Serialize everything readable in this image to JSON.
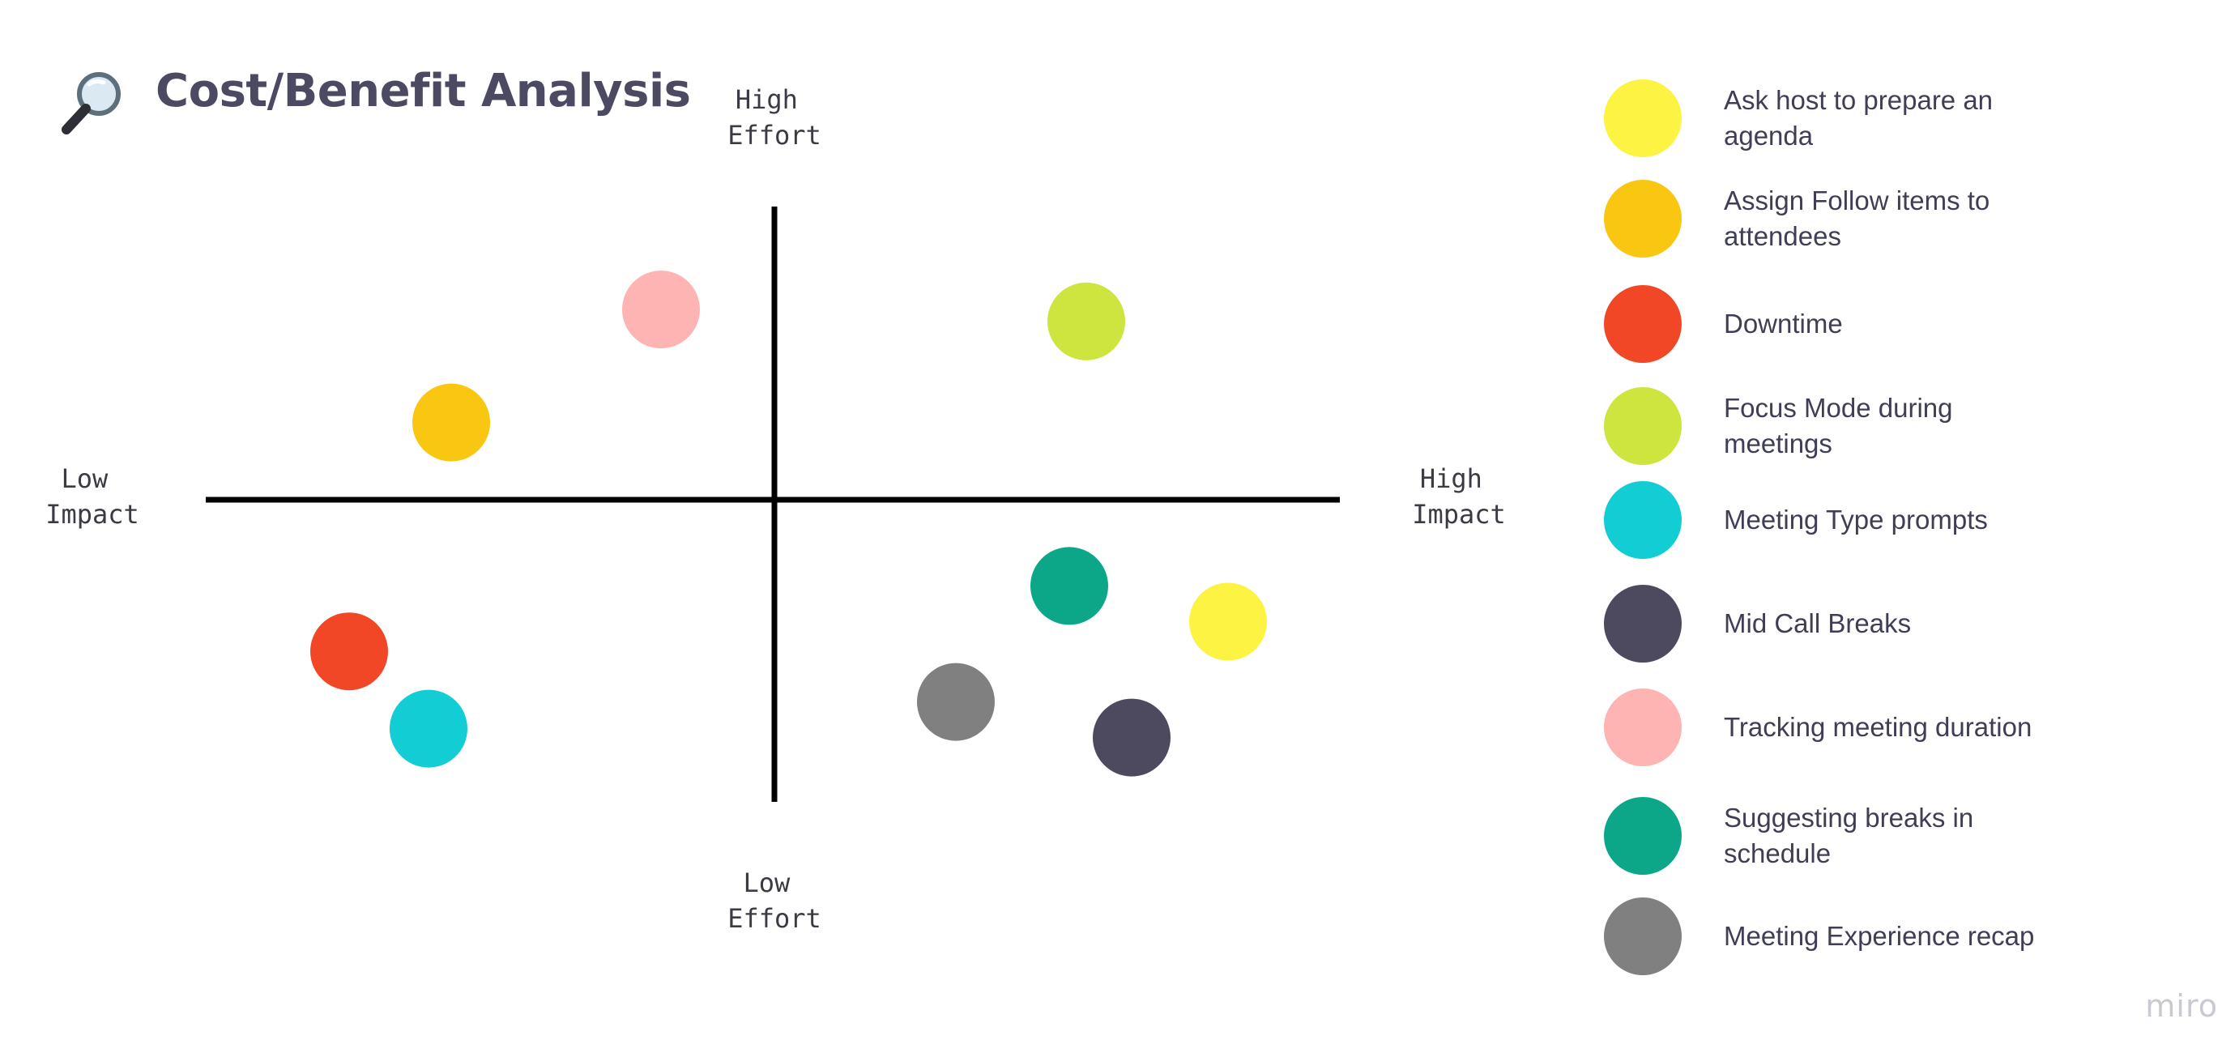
{
  "title": "Cost/Benefit Analysis",
  "title_icon": "magnifying-glass-icon",
  "watermark": "miro",
  "colors": {
    "text": "#4b4a62",
    "axis": "#000000"
  },
  "chart_data": {
    "type": "scatter",
    "title": "Cost/Benefit Analysis",
    "x_axis": {
      "low_label": [
        "Low",
        "Impact"
      ],
      "high_label": [
        "High",
        "Impact"
      ],
      "range": [
        -1,
        1
      ]
    },
    "y_axis": {
      "low_label": [
        "Low",
        "Effort"
      ],
      "high_label": [
        "High",
        "Effort"
      ],
      "range": [
        -1,
        1
      ]
    },
    "grid": false,
    "legend_position": "right",
    "points": [
      {
        "name": "Ask host to prepare an agenda",
        "color": "#fcf342",
        "x": 0.8,
        "y": -0.41
      },
      {
        "name": "Assign Follow items to attendees",
        "color": "#f9c612",
        "x": -0.57,
        "y": 0.26
      },
      {
        "name": "Downtime",
        "color": "#f24726",
        "x": -0.75,
        "y": -0.51
      },
      {
        "name": "Focus Mode during meetings",
        "color": "#cde53e",
        "x": 0.55,
        "y": 0.6
      },
      {
        "name": "Meeting Type prompts",
        "color": "#12cdd4",
        "x": -0.61,
        "y": -0.77
      },
      {
        "name": "Mid Call Breaks",
        "color": "#4d4a60",
        "x": 0.63,
        "y": -0.8
      },
      {
        "name": "Tracking meeting duration",
        "color": "#fdb4b3",
        "x": -0.2,
        "y": 0.64
      },
      {
        "name": "Suggesting breaks in schedule",
        "color": "#0ca789",
        "x": 0.52,
        "y": -0.29
      },
      {
        "name": "Meeting Experience recap",
        "color": "#808080",
        "x": 0.32,
        "y": -0.68
      }
    ]
  }
}
